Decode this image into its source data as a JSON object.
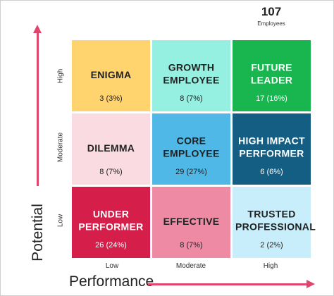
{
  "summary": {
    "total_count": "107",
    "total_label": "Employees"
  },
  "chart_data": {
    "type": "heatmap",
    "xlabel": "Performance",
    "ylabel": "Potential",
    "x_categories": [
      "Low",
      "Moderate",
      "High"
    ],
    "y_categories": [
      "Low",
      "Moderate",
      "High"
    ],
    "cells": [
      {
        "potential": "High",
        "performance": "Low",
        "label": "ENIGMA",
        "count": 3,
        "count_text": "3 (3%)",
        "color": "#ffd46e",
        "text_color": "#222222"
      },
      {
        "potential": "High",
        "performance": "Moderate",
        "label": "GROWTH\nEMPLOYEE",
        "count": 8,
        "count_text": "8 (7%)",
        "color": "#95f0e1",
        "text_color": "#222222"
      },
      {
        "potential": "High",
        "performance": "High",
        "label": "FUTURE\nLEADER",
        "count": 17,
        "count_text": "17 (16%)",
        "color": "#19b64f",
        "text_color": "#ffffff"
      },
      {
        "potential": "Moderate",
        "performance": "Low",
        "label": "DILEMMA",
        "count": 8,
        "count_text": "8 (7%)",
        "color": "#fadbe2",
        "text_color": "#222222"
      },
      {
        "potential": "Moderate",
        "performance": "Moderate",
        "label": "CORE\nEMPLOYEE",
        "count": 29,
        "count_text": "29 (27%)",
        "color": "#4fb8e6",
        "text_color": "#222222"
      },
      {
        "potential": "Moderate",
        "performance": "High",
        "label": "HIGH IMPACT\nPERFORMER",
        "count": 6,
        "count_text": "6 (6%)",
        "color": "#135e82",
        "text_color": "#ffffff"
      },
      {
        "potential": "Low",
        "performance": "Low",
        "label": "UNDER\nPERFORMER",
        "count": 26,
        "count_text": "26 (24%)",
        "color": "#d61e4b",
        "text_color": "#ffffff"
      },
      {
        "potential": "Low",
        "performance": "Moderate",
        "label": "EFFECTIVE",
        "count": 8,
        "count_text": "8 (7%)",
        "color": "#ef8aa4",
        "text_color": "#222222"
      },
      {
        "potential": "Low",
        "performance": "High",
        "label": "TRUSTED\nPROFESSIONAL",
        "count": 2,
        "count_text": "2 (2%)",
        "color": "#c9eefb",
        "text_color": "#222222"
      }
    ]
  }
}
